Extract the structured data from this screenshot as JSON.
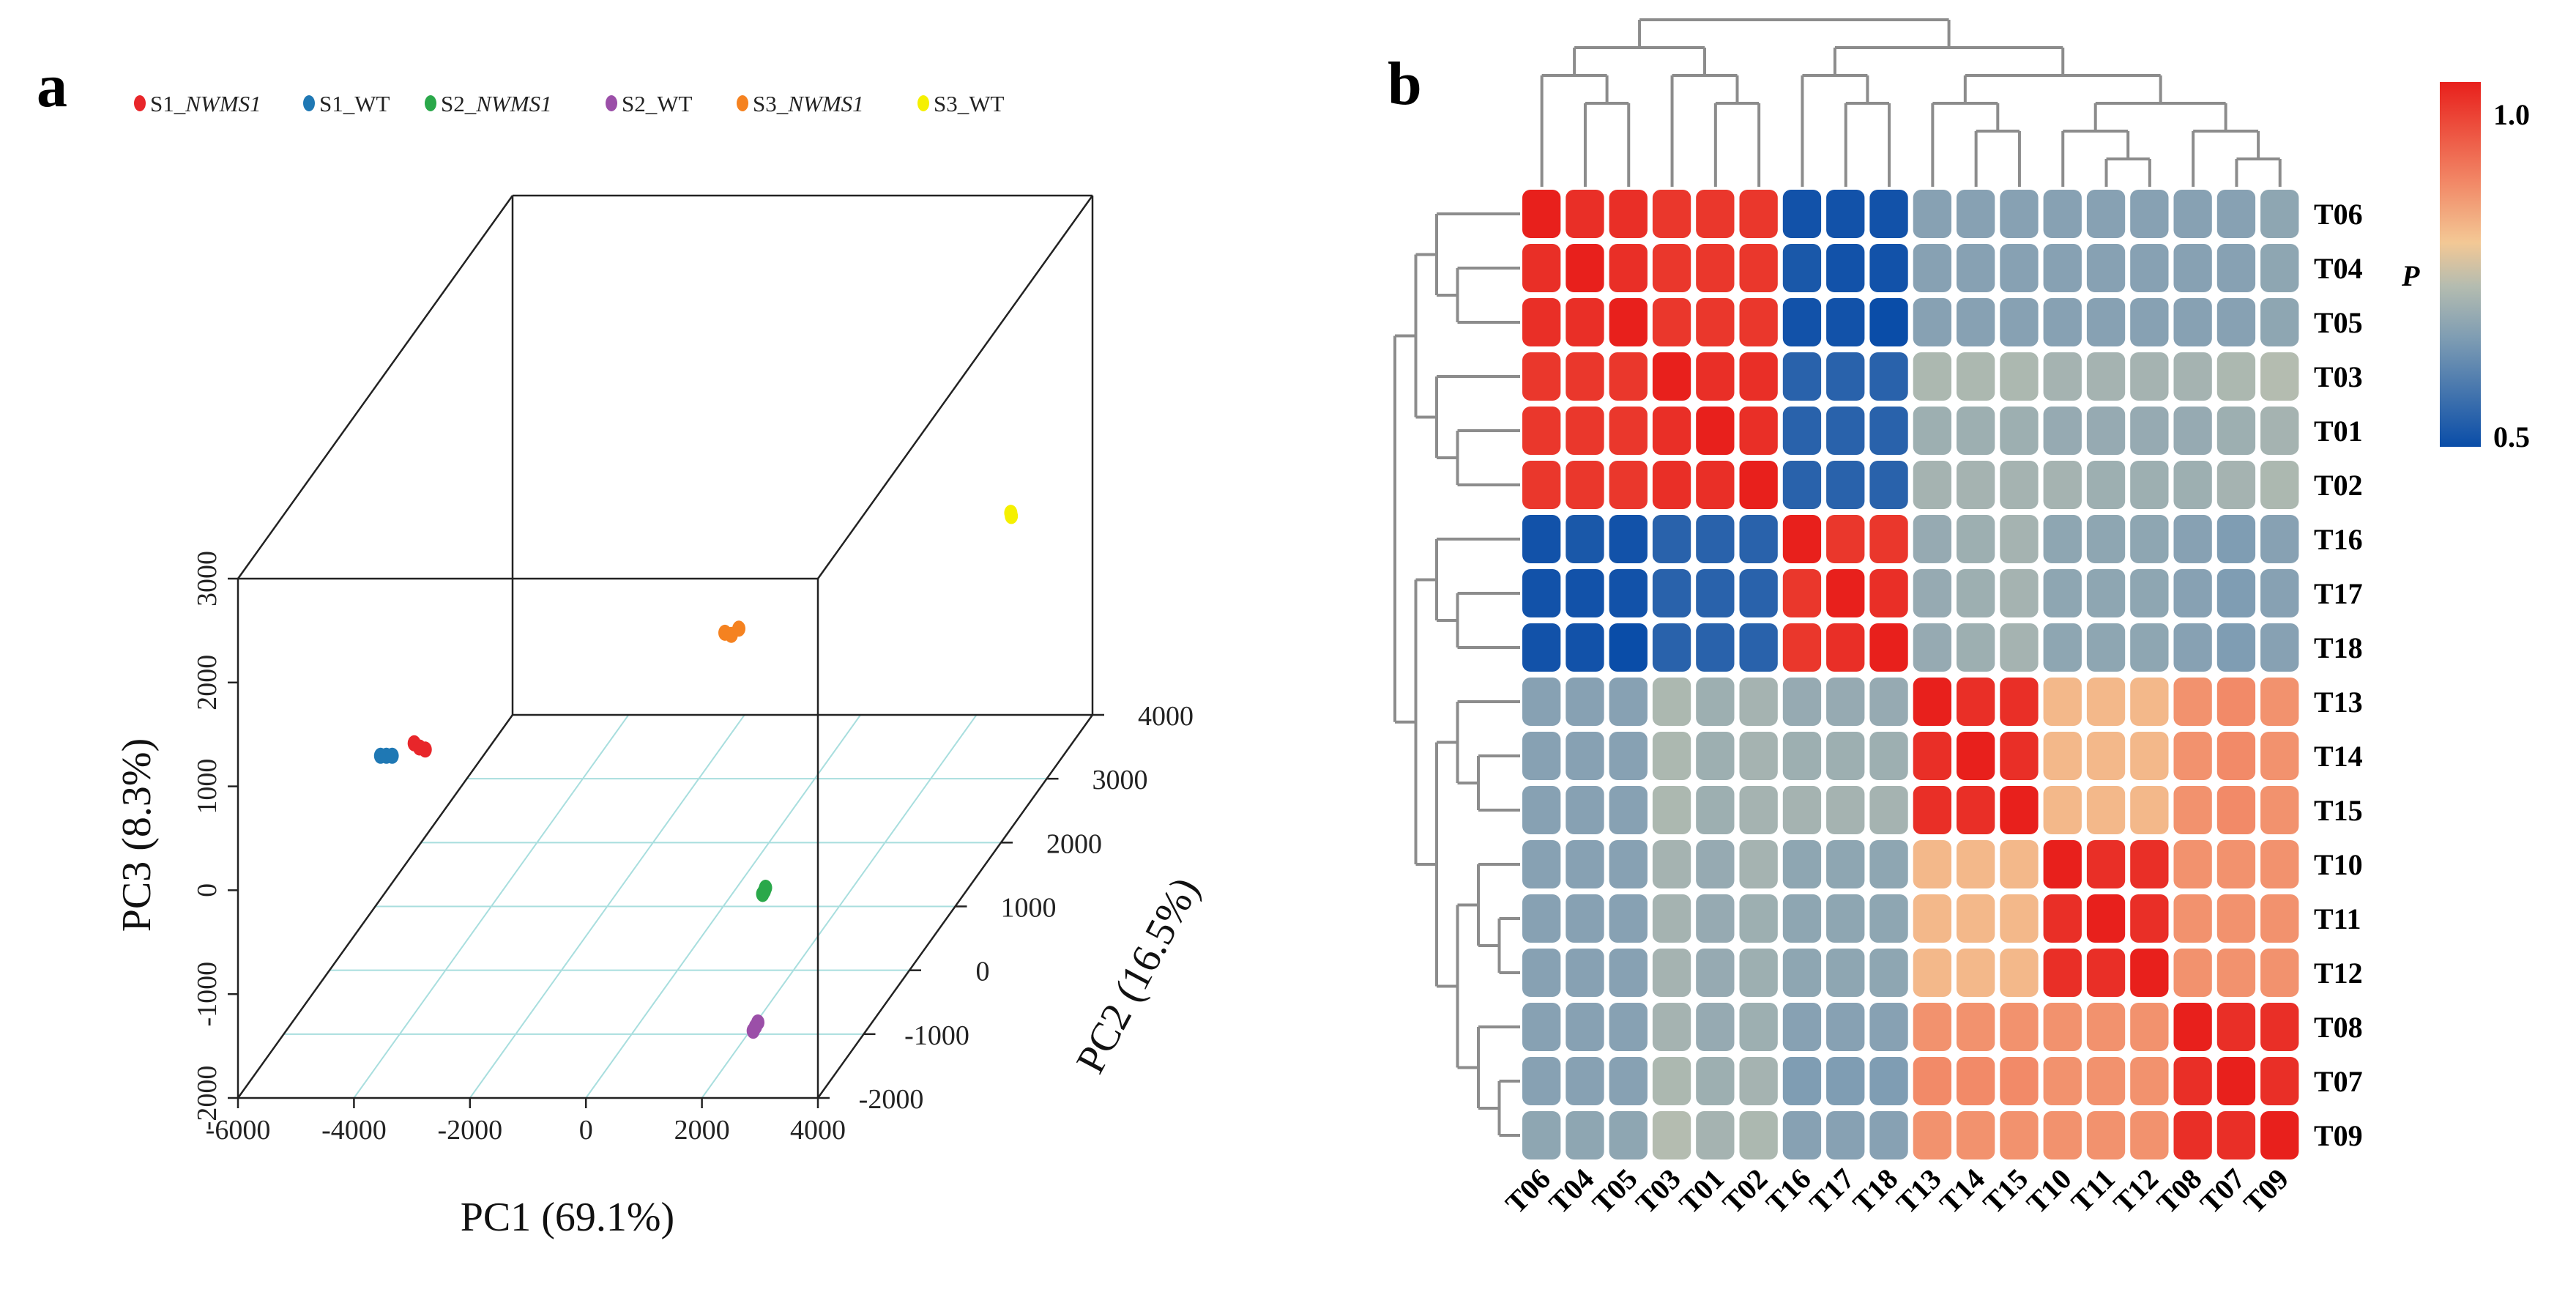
{
  "chart_data": [
    {
      "type": "scatter",
      "panel_label": "a",
      "title": "",
      "xlabel": "PC1 (69.1%)",
      "ylabel": "PC2 (16.5%)",
      "zlabel": "PC3 (8.3%)",
      "xlim": [
        -6000,
        4000
      ],
      "ylim": [
        -2000,
        4000
      ],
      "zlim": [
        -2000,
        3000
      ],
      "x_ticks": [
        "-6000",
        "-4000",
        "-2000",
        "0",
        "2000",
        "4000"
      ],
      "y_ticks": [
        "-2000",
        "-1000",
        "0",
        "1000",
        "2000",
        "3000",
        "4000"
      ],
      "z_ticks": [
        "-2000",
        "-1000",
        "0",
        "1000",
        "2000",
        "3000"
      ],
      "legend_position": "top",
      "series": [
        {
          "name": "S1_NWMS1",
          "prefix": "S1_",
          "italic": "NWMS1",
          "color": "#e8262a",
          "points": [
            [
              -3750,
              -1000,
              800
            ],
            [
              -3660,
              -1000,
              760
            ],
            [
              -3560,
              -1000,
              740
            ]
          ]
        },
        {
          "name": "S1_WT",
          "prefix": "S1_WT",
          "italic": "",
          "color": "#1f78b4",
          "points": [
            [
              -4330,
              -1000,
              680
            ],
            [
              -4230,
              -1000,
              680
            ],
            [
              -4130,
              -1000,
              680
            ]
          ]
        },
        {
          "name": "S2_NWMS1",
          "prefix": "S2_",
          "italic": "NWMS1",
          "color": "#2aa84a",
          "points": [
            [
              680,
              1000,
              -1880
            ],
            [
              710,
              1000,
              -1850
            ],
            [
              730,
              1000,
              -1820
            ]
          ]
        },
        {
          "name": "S2_WT",
          "prefix": "S2_WT",
          "italic": "",
          "color": "#9b4fa8",
          "points": [
            [
              2490,
              -1500,
              -1660
            ],
            [
              2530,
              -1500,
              -1620
            ],
            [
              2570,
              -1500,
              -1580
            ]
          ]
        },
        {
          "name": "S3_NWMS1",
          "prefix": "S3_",
          "italic": "NWMS1",
          "color": "#f58220",
          "points": [
            [
              -760,
              2000,
              20
            ],
            [
              -650,
              2000,
              0
            ],
            [
              -520,
              2000,
              60
            ]
          ]
        },
        {
          "name": "S3_WT",
          "prefix": "S3_WT",
          "italic": "",
          "color": "#f5f000",
          "points": [
            [
              3380,
              3000,
              560
            ],
            [
              3390,
              3000,
              530
            ]
          ]
        }
      ]
    },
    {
      "type": "heatmap",
      "panel_label": "b",
      "labels": [
        "T06",
        "T04",
        "T05",
        "T03",
        "T01",
        "T02",
        "T16",
        "T17",
        "T18",
        "T13",
        "T14",
        "T15",
        "T10",
        "T11",
        "T12",
        "T08",
        "T07",
        "T09"
      ],
      "colorbar": {
        "title": "P",
        "min_label": "0.5",
        "max_label": "1.0",
        "range": [
          0.5,
          1.0
        ],
        "stops": [
          [
            0.5,
            "#0a4da8"
          ],
          [
            0.65,
            "#7f9db3"
          ],
          [
            0.72,
            "#b4bcb0"
          ],
          [
            0.78,
            "#f3c895"
          ],
          [
            0.86,
            "#f28a68"
          ],
          [
            1.0,
            "#e8201c"
          ]
        ]
      },
      "dendrogram": {
        "h": 6,
        "c": [
          {
            "h": 5,
            "c": [
              {
                "h": 4,
                "c": [
                  0,
                  {
                    "h": 3,
                    "c": [
                      1,
                      2
                    ]
                  }
                ]
              },
              {
                "h": 4,
                "c": [
                  3,
                  {
                    "h": 3,
                    "c": [
                      4,
                      5
                    ]
                  }
                ]
              }
            ]
          },
          {
            "h": 5,
            "c": [
              {
                "h": 4,
                "c": [
                  6,
                  {
                    "h": 3,
                    "c": [
                      7,
                      8
                    ]
                  }
                ]
              },
              {
                "h": 4,
                "c": [
                  {
                    "h": 3,
                    "c": [
                      9,
                      {
                        "h": 2,
                        "c": [
                          10,
                          11
                        ]
                      }
                    ]
                  },
                  {
                    "h": 3,
                    "c": [
                      {
                        "h": 2,
                        "c": [
                          12,
                          {
                            "h": 1,
                            "c": [
                              13,
                              14
                            ]
                          }
                        ]
                      },
                      {
                        "h": 2,
                        "c": [
                          15,
                          {
                            "h": 1,
                            "c": [
                              16,
                              17
                            ]
                          }
                        ]
                      }
                    ]
                  }
                ]
              }
            ]
          }
        ]
      },
      "values": [
        [
          1.0,
          0.98,
          0.98,
          0.97,
          0.97,
          0.97,
          0.51,
          0.51,
          0.51,
          0.66,
          0.66,
          0.66,
          0.66,
          0.66,
          0.66,
          0.66,
          0.66,
          0.67
        ],
        [
          0.98,
          1.0,
          0.98,
          0.97,
          0.97,
          0.97,
          0.52,
          0.51,
          0.51,
          0.66,
          0.66,
          0.66,
          0.66,
          0.66,
          0.66,
          0.66,
          0.66,
          0.67
        ],
        [
          0.98,
          0.98,
          1.0,
          0.97,
          0.97,
          0.97,
          0.51,
          0.51,
          0.5,
          0.66,
          0.66,
          0.66,
          0.66,
          0.66,
          0.66,
          0.66,
          0.66,
          0.67
        ],
        [
          0.97,
          0.97,
          0.97,
          1.0,
          0.98,
          0.98,
          0.54,
          0.54,
          0.54,
          0.71,
          0.71,
          0.71,
          0.7,
          0.7,
          0.7,
          0.7,
          0.71,
          0.72
        ],
        [
          0.97,
          0.97,
          0.97,
          0.98,
          1.0,
          0.98,
          0.54,
          0.54,
          0.54,
          0.69,
          0.69,
          0.69,
          0.68,
          0.68,
          0.68,
          0.68,
          0.69,
          0.7
        ],
        [
          0.97,
          0.97,
          0.97,
          0.98,
          0.98,
          1.0,
          0.54,
          0.54,
          0.54,
          0.7,
          0.7,
          0.7,
          0.7,
          0.69,
          0.69,
          0.69,
          0.7,
          0.71
        ],
        [
          0.51,
          0.52,
          0.51,
          0.54,
          0.54,
          0.54,
          1.0,
          0.97,
          0.97,
          0.68,
          0.69,
          0.7,
          0.67,
          0.67,
          0.67,
          0.66,
          0.65,
          0.66
        ],
        [
          0.51,
          0.51,
          0.51,
          0.54,
          0.54,
          0.54,
          0.97,
          1.0,
          0.98,
          0.68,
          0.69,
          0.7,
          0.67,
          0.67,
          0.67,
          0.66,
          0.65,
          0.66
        ],
        [
          0.51,
          0.51,
          0.5,
          0.54,
          0.54,
          0.54,
          0.97,
          0.98,
          1.0,
          0.68,
          0.69,
          0.7,
          0.67,
          0.67,
          0.67,
          0.66,
          0.65,
          0.66
        ],
        [
          0.66,
          0.66,
          0.66,
          0.71,
          0.69,
          0.7,
          0.68,
          0.68,
          0.68,
          1.0,
          0.98,
          0.98,
          0.8,
          0.8,
          0.8,
          0.85,
          0.86,
          0.85
        ],
        [
          0.66,
          0.66,
          0.66,
          0.71,
          0.69,
          0.7,
          0.69,
          0.69,
          0.69,
          0.98,
          1.0,
          0.98,
          0.8,
          0.8,
          0.8,
          0.85,
          0.86,
          0.85
        ],
        [
          0.66,
          0.66,
          0.66,
          0.71,
          0.69,
          0.7,
          0.7,
          0.7,
          0.7,
          0.98,
          0.98,
          1.0,
          0.8,
          0.8,
          0.8,
          0.85,
          0.86,
          0.85
        ],
        [
          0.66,
          0.66,
          0.66,
          0.7,
          0.68,
          0.7,
          0.67,
          0.67,
          0.67,
          0.8,
          0.8,
          0.8,
          1.0,
          0.98,
          0.98,
          0.85,
          0.85,
          0.85
        ],
        [
          0.66,
          0.66,
          0.66,
          0.7,
          0.68,
          0.69,
          0.67,
          0.67,
          0.67,
          0.8,
          0.8,
          0.8,
          0.98,
          1.0,
          0.98,
          0.85,
          0.85,
          0.85
        ],
        [
          0.66,
          0.66,
          0.66,
          0.7,
          0.68,
          0.69,
          0.67,
          0.67,
          0.67,
          0.8,
          0.8,
          0.8,
          0.98,
          0.98,
          1.0,
          0.85,
          0.85,
          0.85
        ],
        [
          0.66,
          0.66,
          0.66,
          0.7,
          0.68,
          0.69,
          0.66,
          0.66,
          0.66,
          0.85,
          0.85,
          0.85,
          0.85,
          0.85,
          0.85,
          1.0,
          0.98,
          0.98
        ],
        [
          0.66,
          0.66,
          0.66,
          0.71,
          0.69,
          0.7,
          0.65,
          0.65,
          0.65,
          0.86,
          0.86,
          0.86,
          0.85,
          0.85,
          0.85,
          0.98,
          1.0,
          0.98
        ],
        [
          0.67,
          0.67,
          0.67,
          0.72,
          0.7,
          0.71,
          0.66,
          0.66,
          0.66,
          0.85,
          0.85,
          0.85,
          0.85,
          0.85,
          0.85,
          0.98,
          0.98,
          1.0
        ]
      ]
    }
  ]
}
